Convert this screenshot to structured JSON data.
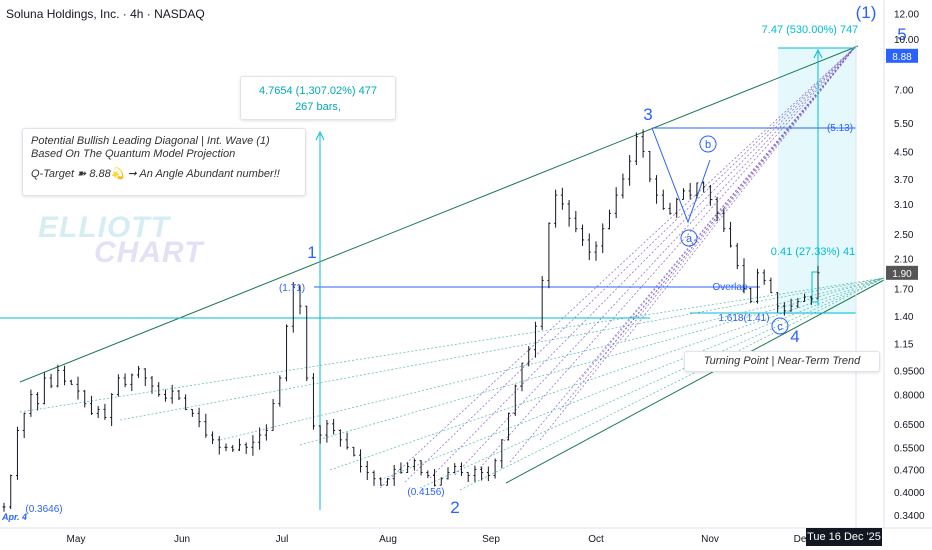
{
  "header": {
    "title": "Soluna Holdings, Inc. · 4h · NASDAQ"
  },
  "watermark": {
    "line1": "ELLIOTT",
    "line2": "CHART"
  },
  "note": {
    "line1": "Potential Bullish Leading Diagonal | Int. Wave (1)",
    "line2": "Based On The Quantum Model Projection",
    "line3": "Q-Target ➽ 8.88💫 ➞ An Angle Abundant number!!"
  },
  "measure_box": {
    "line1": "4.7654 (1,307.02%) 477",
    "line2": "267 bars,"
  },
  "turning_point": "Turning Point | Near-Term Trend",
  "crosshair_date": "Tue 16 Dec '25",
  "colors": {
    "accent": "#00bcd4",
    "wave": "#2962ff",
    "trend": "#1b7a4f",
    "price": "#131722",
    "fan": "#7e57c2",
    "current_price": "#2962ff"
  },
  "chart_data": {
    "type": "line",
    "title": "Soluna Holdings, Inc. · 4h · NASDAQ",
    "y_scale": "log",
    "ylim": [
      0.31,
      13.2
    ],
    "x_tick_labels": [
      "May",
      "Jun",
      "Jul",
      "Aug",
      "Sep",
      "Oct",
      "Nov",
      "De"
    ],
    "y_tick_labels": [
      "12.00",
      "10.00",
      "8.88",
      "7.00",
      "5.50",
      "4.50",
      "3.70",
      "3.10",
      "2.50",
      "2.10",
      "1.90",
      "1.70",
      "1.40",
      "1.15",
      "0.9500",
      "0.8000",
      "0.6500",
      "0.5500",
      "0.4700",
      "0.4000",
      "0.3400"
    ],
    "current_price": "1.90",
    "target_price": "8.88",
    "series": [
      {
        "values": [
          0.36,
          0.45,
          0.62,
          0.7,
          0.8,
          0.75,
          0.9,
          0.85,
          0.95,
          0.88,
          0.86,
          0.82,
          0.75,
          0.7,
          0.72,
          0.68,
          0.8,
          0.9,
          0.86,
          0.92,
          0.96,
          0.9,
          0.85,
          0.8,
          0.78,
          0.82,
          0.78,
          0.72,
          0.7,
          0.66,
          0.6,
          0.58,
          0.55,
          0.55,
          0.54,
          0.56,
          0.55,
          0.57,
          0.6,
          0.62,
          0.75,
          0.9,
          1.3,
          1.71,
          1.5,
          0.9,
          0.64,
          0.6,
          0.65,
          0.62,
          0.58,
          0.55,
          0.52,
          0.48,
          0.46,
          0.44,
          0.42,
          0.44,
          0.47,
          0.46,
          0.48,
          0.5,
          0.46,
          0.45,
          0.42,
          0.44,
          0.46,
          0.48,
          0.46,
          0.45,
          0.47,
          0.46,
          0.45,
          0.5,
          0.58,
          0.7,
          0.85,
          1.0,
          1.1,
          1.3,
          1.8,
          2.7,
          3.3,
          3.1,
          2.8,
          2.6,
          2.4,
          2.2,
          2.3,
          2.6,
          2.9,
          3.3,
          3.7,
          4.2,
          5.0,
          4.5,
          3.7,
          3.3,
          3.0,
          2.9,
          3.2,
          3.4,
          3.3,
          3.6,
          3.5,
          3.2,
          2.9,
          2.6,
          2.3,
          2.0,
          1.7,
          1.55,
          1.9,
          1.8,
          1.65,
          1.5,
          1.45,
          1.5,
          1.55,
          1.6,
          1.58,
          1.9
        ]
      }
    ],
    "annotations": [
      "1",
      "2",
      "3",
      "4",
      "5",
      "(1)",
      "a",
      "b",
      "c",
      "(1.71)",
      "(0.4156)",
      "(0.3646)",
      "(5.13)",
      "Overlap",
      "1.618(1.41)",
      "7.47 (530.00%) 747",
      "0.41 (27.33%) 41",
      "Apr. 4"
    ],
    "grid": false,
    "legend": "none"
  }
}
